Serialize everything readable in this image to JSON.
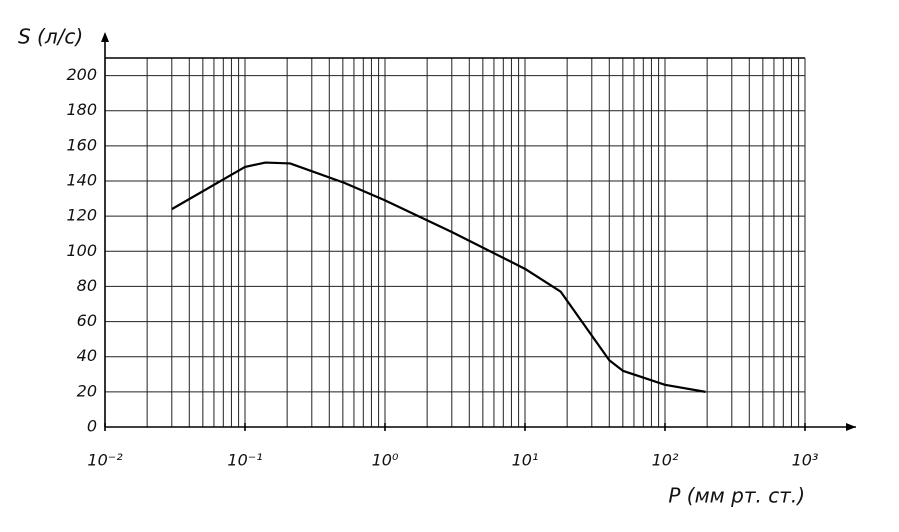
{
  "chart_data": {
    "type": "line",
    "xscale": "log",
    "xlabel": "P (мм рт. ст.)",
    "ylabel": "S (л/с)",
    "x": [
      0.03,
      0.1,
      0.14,
      0.21,
      0.51,
      1,
      3,
      10,
      18,
      40,
      50,
      100,
      195
    ],
    "values": [
      124,
      148,
      150.5,
      150,
      139,
      129,
      111,
      90,
      77,
      38,
      32,
      24,
      20
    ],
    "color": "#000000",
    "xlim": [
      0.01,
      1000
    ],
    "xticks": [
      {
        "value": 0.01,
        "label": "10⁻²"
      },
      {
        "value": 0.1,
        "label": "10⁻¹"
      },
      {
        "value": 1,
        "label": "10⁰"
      },
      {
        "value": 10,
        "label": "10¹"
      },
      {
        "value": 100,
        "label": "10²"
      },
      {
        "value": 1000,
        "label": "10³"
      }
    ],
    "ylim": [
      0,
      210
    ],
    "yticks": [
      0,
      20,
      40,
      60,
      80,
      100,
      120,
      140,
      160,
      180,
      200
    ],
    "grid": true
  }
}
